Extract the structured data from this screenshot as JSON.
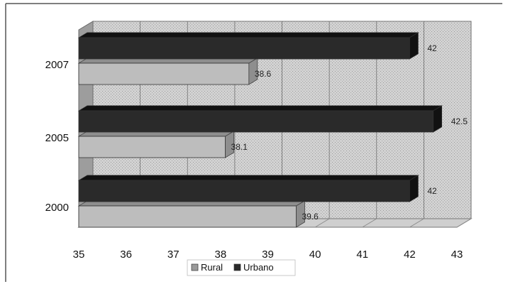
{
  "chart_data": {
    "type": "bar",
    "orientation": "horizontal",
    "style": "3d",
    "categories": [
      "2007",
      "2005",
      "2000"
    ],
    "series": [
      {
        "name": "Rural",
        "values": [
          38.6,
          38.1,
          39.6
        ],
        "data_labels": [
          "38.6",
          "38.1",
          "39.6"
        ],
        "color": "#b4b4b4"
      },
      {
        "name": "Urbano",
        "values": [
          42,
          42.5,
          42
        ],
        "data_labels": [
          "42",
          "42.5",
          "42"
        ],
        "color": "#2a2a2a"
      }
    ],
    "x_ticks": [
      "35",
      "36",
      "37",
      "38",
      "39",
      "40",
      "41",
      "42",
      "43"
    ],
    "xlim": [
      35,
      43
    ],
    "grid": true,
    "legend_position": "bottom"
  }
}
